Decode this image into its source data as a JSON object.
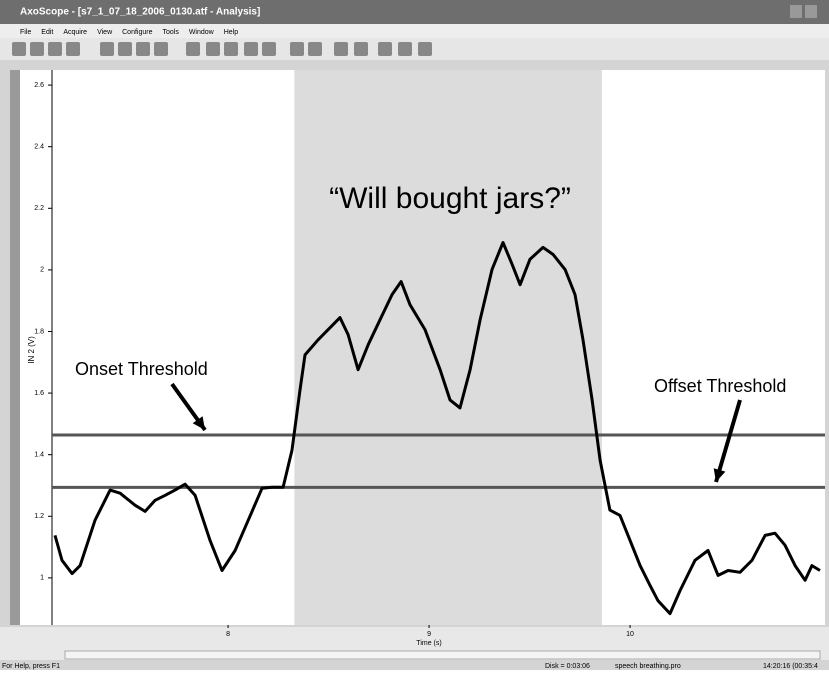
{
  "window": {
    "title": "AxoScope - [s7_1_07_18_2006_0130.atf - Analysis]",
    "menu": [
      "File",
      "Edit",
      "Acquire",
      "View",
      "Configure",
      "Tools",
      "Window",
      "Help"
    ]
  },
  "status_bar": {
    "help": "For Help, press F1",
    "disk": "Disk = 0:03:06",
    "protocol": "speech breathing.pro",
    "time": "14:20:16 (00:35:4"
  },
  "chart_data": {
    "type": "line",
    "annotation": "“Will bought jars?”",
    "x_label": "Time (s)",
    "y_label": "IN 2 (V)",
    "xlim": [
      7.124,
      10.97
    ],
    "ylim": [
      0.847,
      2.649
    ],
    "xticks": [
      8,
      9,
      10
    ],
    "yticks": [
      1,
      1.2,
      1.4,
      1.6,
      1.8,
      2,
      2.2,
      2.4,
      2.6
    ],
    "shaded_region": [
      8.33,
      9.86
    ],
    "shade_color": "#dcdcdc",
    "thresholds": [
      {
        "label": "Onset Threshold",
        "value": 1.464
      },
      {
        "label": "Offset Threshold",
        "value": 1.294
      }
    ],
    "threshold_color": "#555555",
    "color": "#000000",
    "x": [
      7.139,
      7.174,
      7.224,
      7.264,
      7.338,
      7.413,
      7.463,
      7.537,
      7.587,
      7.637,
      7.687,
      7.736,
      7.786,
      7.836,
      7.91,
      7.97,
      8.035,
      8.1,
      8.169,
      8.219,
      8.274,
      8.318,
      8.358,
      8.383,
      8.448,
      8.498,
      8.557,
      8.597,
      8.647,
      8.697,
      8.756,
      8.816,
      8.861,
      8.905,
      8.98,
      9.055,
      9.104,
      9.154,
      9.204,
      9.254,
      9.313,
      9.368,
      9.413,
      9.453,
      9.502,
      9.567,
      9.617,
      9.677,
      9.726,
      9.766,
      9.811,
      9.851,
      9.9,
      9.95,
      10.0,
      10.05,
      10.1,
      10.139,
      10.199,
      10.249,
      10.323,
      10.388,
      10.438,
      10.488,
      10.547,
      10.607,
      10.672,
      10.721,
      10.771,
      10.821,
      10.871,
      10.905,
      10.945
    ],
    "values": [
      1.138,
      1.057,
      1.014,
      1.04,
      1.187,
      1.285,
      1.275,
      1.236,
      1.216,
      1.252,
      1.268,
      1.285,
      1.304,
      1.268,
      1.122,
      1.024,
      1.089,
      1.187,
      1.291,
      1.294,
      1.294,
      1.415,
      1.61,
      1.724,
      1.773,
      1.806,
      1.845,
      1.79,
      1.676,
      1.757,
      1.838,
      1.92,
      1.962,
      1.887,
      1.806,
      1.676,
      1.578,
      1.552,
      1.676,
      1.838,
      2.001,
      2.089,
      2.018,
      1.952,
      2.034,
      2.073,
      2.05,
      2.001,
      1.92,
      1.773,
      1.578,
      1.382,
      1.22,
      1.203,
      1.122,
      1.04,
      0.975,
      0.926,
      0.884,
      0.959,
      1.057,
      1.089,
      1.008,
      1.024,
      1.018,
      1.057,
      1.138,
      1.145,
      1.106,
      1.04,
      0.992,
      1.04,
      1.024
    ]
  }
}
